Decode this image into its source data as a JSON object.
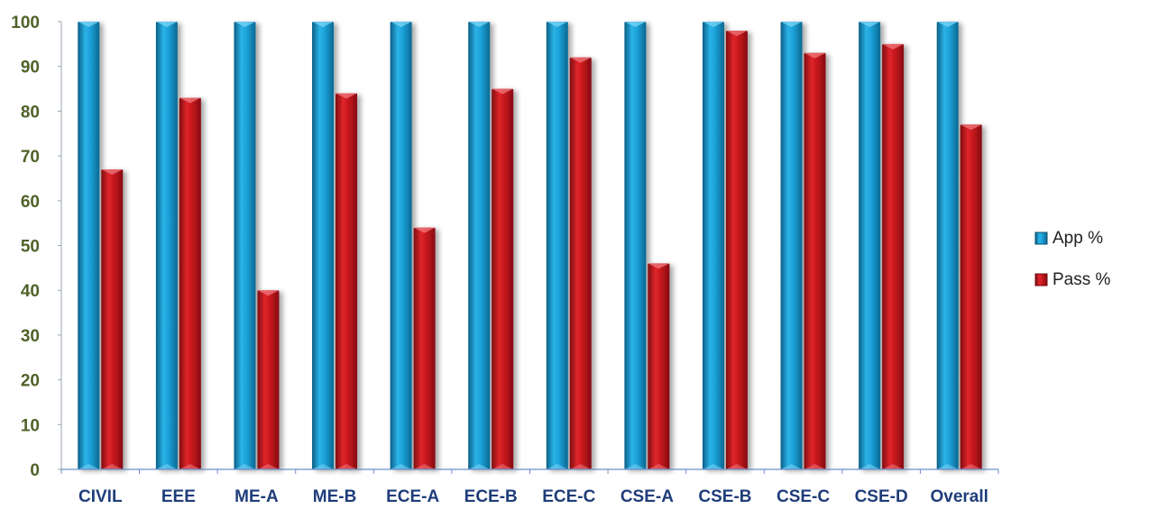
{
  "chart_data": {
    "type": "bar",
    "title": "",
    "xlabel": "",
    "ylabel": "",
    "categories": [
      "CIVIL",
      "EEE",
      "ME-A",
      "ME-B",
      "ECE-A",
      "ECE-B",
      "ECE-C",
      "CSE-A",
      "CSE-B",
      "CSE-C",
      "CSE-D",
      "Overall"
    ],
    "series": [
      {
        "name": "App %",
        "color": "#1a9fd6",
        "values": [
          100,
          100,
          100,
          100,
          100,
          100,
          100,
          100,
          100,
          100,
          100,
          100
        ]
      },
      {
        "name": "Pass %",
        "color": "#c4161c",
        "values": [
          67,
          83,
          40,
          84,
          54,
          85,
          92,
          46,
          98,
          93,
          95,
          77
        ]
      }
    ],
    "ylim": [
      0,
      100
    ],
    "yticks": [
      0,
      10,
      20,
      30,
      40,
      50,
      60,
      70,
      80,
      90,
      100
    ],
    "grid": false,
    "legend_position": "right"
  }
}
